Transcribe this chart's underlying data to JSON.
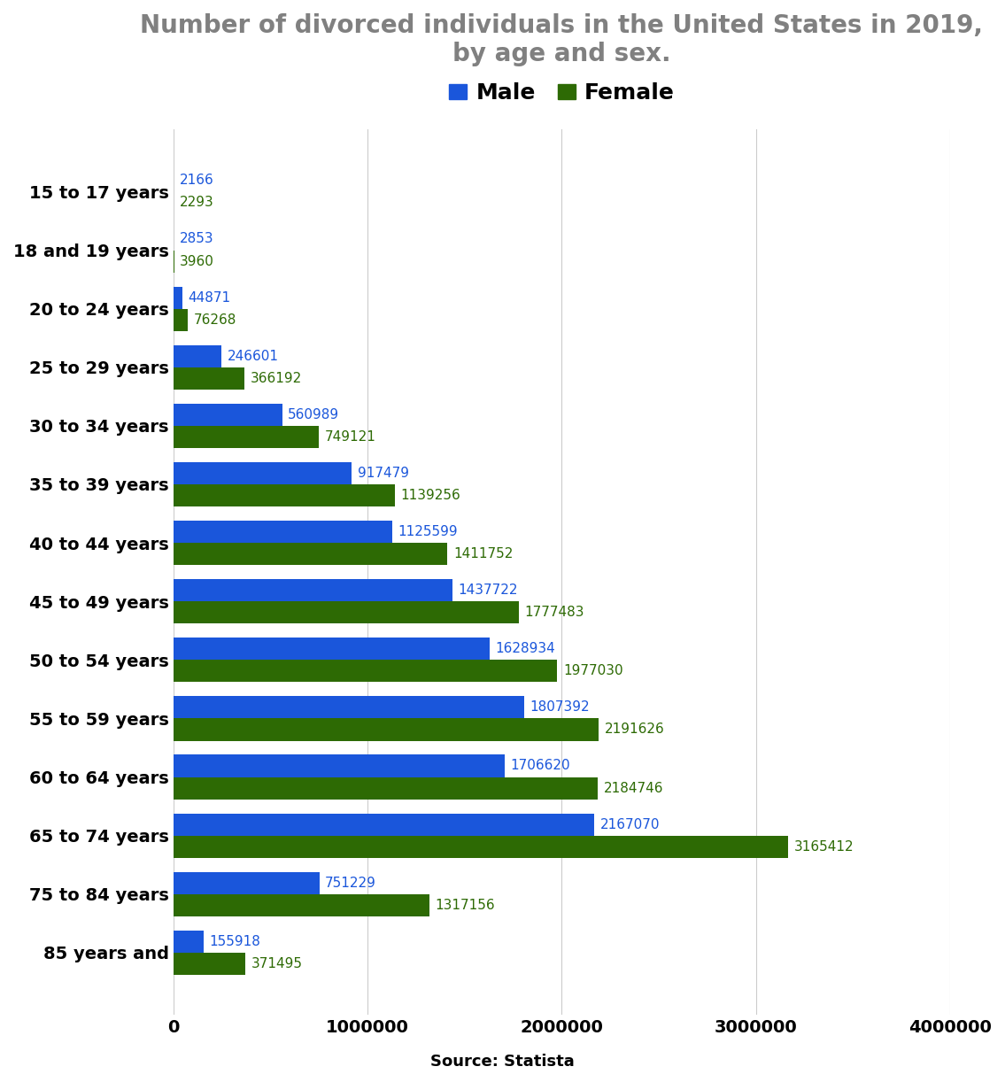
{
  "title": "Number of divorced individuals in the United States in 2019,\nby age and sex.",
  "source": "Source: Statista",
  "categories": [
    "15 to 17 years",
    "18 and 19 years",
    "20 to 24 years",
    "25 to 29 years",
    "30 to 34 years",
    "35 to 39 years",
    "40 to 44 years",
    "45 to 49 years",
    "50 to 54 years",
    "55 to 59 years",
    "60 to 64 years",
    "65 to 74 years",
    "75 to 84 years",
    "85 years and"
  ],
  "male_values": [
    2166,
    2853,
    44871,
    246601,
    560989,
    917479,
    1125599,
    1437722,
    1628934,
    1807392,
    1706620,
    2167070,
    751229,
    155918
  ],
  "female_values": [
    2293,
    3960,
    76268,
    366192,
    749121,
    1139256,
    1411752,
    1777483,
    1977030,
    2191626,
    2184746,
    3165412,
    1317156,
    371495
  ],
  "male_color": "#1a56db",
  "female_color": "#2d6a04",
  "male_label": "Male",
  "female_label": "Female",
  "xlim": [
    0,
    4000000
  ],
  "xticks": [
    0,
    1000000,
    2000000,
    3000000,
    4000000
  ],
  "bar_height": 0.38,
  "title_color": "#808080",
  "title_fontsize": 20,
  "legend_fontsize": 18,
  "tick_label_fontsize": 14,
  "value_fontsize": 11,
  "source_fontsize": 13,
  "background_color": "#ffffff"
}
